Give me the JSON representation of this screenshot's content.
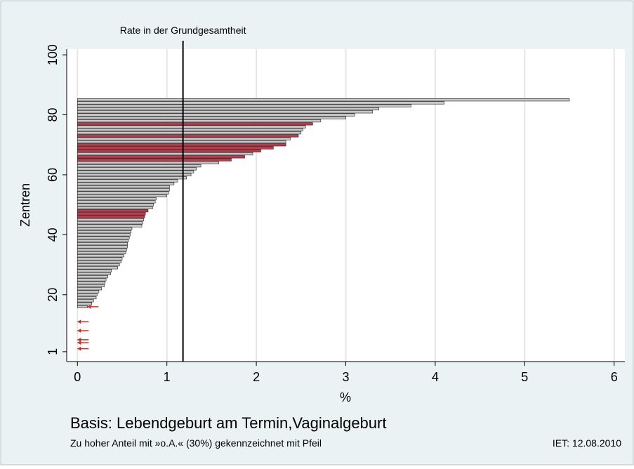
{
  "chart_data": {
    "type": "barh",
    "xlabel": "%",
    "ylabel": "Zentren",
    "footer": "Basis: Lebendgeburt am Termin,Vaginalgeburt",
    "note": "Zu hoher Anteil mit »o.A.« (30%) gekennzeichnet mit Pfeil",
    "stamp": "IET: 12.08.2010",
    "refline": 1.18,
    "refline_label": "Rate in der Grundgesamtheit",
    "y": [
      1,
      2,
      3,
      4,
      5,
      6,
      7,
      8,
      9,
      10,
      11,
      12,
      13,
      14,
      15,
      16,
      17,
      18,
      19,
      20,
      21,
      22,
      23,
      24,
      25,
      26,
      27,
      28,
      29,
      30,
      31,
      32,
      33,
      34,
      35,
      36,
      37,
      38,
      39,
      40,
      41,
      42,
      43,
      44,
      45,
      46,
      47,
      48,
      49,
      50,
      51,
      52,
      53,
      54,
      55,
      56,
      57,
      58,
      59,
      60,
      61,
      62,
      63,
      64,
      65,
      66,
      67,
      68,
      69,
      70,
      71,
      72,
      73,
      74,
      75,
      76,
      77,
      78,
      79,
      80,
      81,
      82,
      83,
      84,
      85
    ],
    "values": [
      0,
      0,
      0,
      0,
      0,
      0,
      0,
      0,
      0,
      0,
      0,
      0,
      0,
      0,
      0,
      0.11,
      0.16,
      0.18,
      0.21,
      0.22,
      0.24,
      0.27,
      0.3,
      0.31,
      0.32,
      0.34,
      0.37,
      0.38,
      0.45,
      0.47,
      0.49,
      0.5,
      0.52,
      0.54,
      0.55,
      0.56,
      0.56,
      0.57,
      0.58,
      0.59,
      0.6,
      0.61,
      0.72,
      0.73,
      0.74,
      0.75,
      0.76,
      0.79,
      0.84,
      0.85,
      0.87,
      0.88,
      1.0,
      1.02,
      1.03,
      1.03,
      1.08,
      1.12,
      1.22,
      1.27,
      1.3,
      1.33,
      1.38,
      1.58,
      1.72,
      1.87,
      1.96,
      2.05,
      2.19,
      2.33,
      2.33,
      2.38,
      2.47,
      2.5,
      2.52,
      2.55,
      2.63,
      2.72,
      3.0,
      3.1,
      3.3,
      3.37,
      3.73,
      4.1,
      5.5
    ],
    "color": "#c8c8c8",
    "highlight_color": "#c0394a",
    "highlighted": [
      46,
      47,
      48,
      65,
      66,
      68,
      69,
      70,
      73,
      77
    ],
    "arrow_color": "#d03020",
    "arrows": [
      2,
      4,
      5,
      8,
      11,
      16
    ],
    "xlim": [
      -0.12,
      6.12
    ],
    "xticks": [
      0,
      1,
      2,
      3,
      4,
      5,
      6
    ],
    "ylim": [
      -2.3,
      101.9
    ],
    "yticks": [
      1,
      20,
      40,
      60,
      80,
      100
    ],
    "grid": true
  }
}
